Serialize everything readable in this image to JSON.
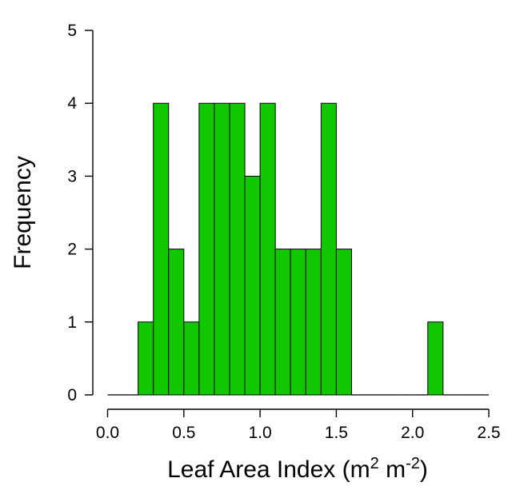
{
  "chart_data": {
    "type": "bar",
    "subtype": "histogram",
    "title": "",
    "xlabel": "Leaf Area Index (m",
    "xlabel_unit_sup_1": "2",
    "xlabel_mid": " m",
    "xlabel_unit_sup_2": "-2",
    "xlabel_end": ")",
    "ylabel": "Frequency",
    "xlim": [
      0.0,
      2.5
    ],
    "ylim": [
      0,
      5
    ],
    "x_ticks": [
      "0.0",
      "0.5",
      "1.0",
      "1.5",
      "2.0",
      "2.5"
    ],
    "y_ticks": [
      "0",
      "1",
      "2",
      "3",
      "4",
      "5"
    ],
    "bin_width": 0.1,
    "bin_starts": [
      0.0,
      0.1,
      0.2,
      0.3,
      0.4,
      0.5,
      0.6,
      0.7,
      0.8,
      0.9,
      1.0,
      1.1,
      1.2,
      1.3,
      1.4,
      1.5,
      1.6,
      1.7,
      1.8,
      1.9,
      2.0,
      2.1,
      2.2,
      2.3,
      2.4
    ],
    "values": [
      0,
      0,
      1,
      4,
      2,
      1,
      4,
      4,
      4,
      3,
      4,
      2,
      2,
      2,
      4,
      2,
      0,
      0,
      0,
      0,
      0,
      1,
      0,
      0,
      0
    ],
    "bar_color": "#11c700",
    "grid": false,
    "legend": "none"
  }
}
